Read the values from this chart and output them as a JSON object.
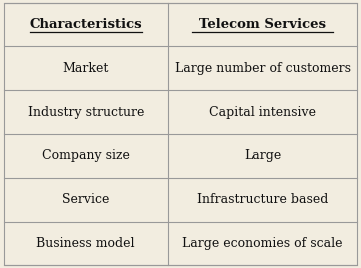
{
  "col1_header": "Characteristics",
  "col2_header": "Telecom Services",
  "rows": [
    [
      "Market",
      "Large number of customers"
    ],
    [
      "Industry structure",
      "Capital intensive"
    ],
    [
      "Company size",
      "Large"
    ],
    [
      "Service",
      "Infrastructure based"
    ],
    [
      "Business model",
      "Large economies of scale"
    ]
  ],
  "background_color": "#f2ede0",
  "line_color": "#999999",
  "text_color": "#111111",
  "header_fontsize": 9.5,
  "cell_fontsize": 9.0,
  "fig_width": 3.61,
  "fig_height": 2.68,
  "col_split": 0.465
}
